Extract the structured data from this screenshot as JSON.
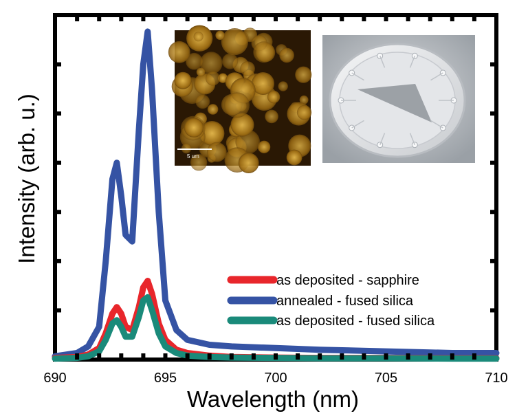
{
  "chart_data": {
    "type": "line",
    "xlabel": "Wavelength (nm)",
    "ylabel": "Intensity (arb. u.)",
    "xlim": [
      690,
      710
    ],
    "ylim": [
      0,
      1.05
    ],
    "x_ticks": [
      690,
      695,
      700,
      705,
      710
    ],
    "x_tick_labels": [
      "690",
      "695",
      "700",
      "705",
      "710"
    ],
    "y_tick_labels_shown": false,
    "grid": false,
    "legend_position": "center-right",
    "series": [
      {
        "name": "as deposited - sapphire",
        "color": "#e8262b",
        "x": [
          690,
          691,
          691.5,
          692,
          692.3,
          692.6,
          692.8,
          693.0,
          693.2,
          693.5,
          693.8,
          694.0,
          694.2,
          694.4,
          694.7,
          695.0,
          695.5,
          696,
          697,
          698,
          700,
          702,
          705,
          708,
          710
        ],
        "y": [
          0.005,
          0.008,
          0.015,
          0.035,
          0.08,
          0.14,
          0.16,
          0.14,
          0.1,
          0.09,
          0.16,
          0.22,
          0.24,
          0.2,
          0.11,
          0.06,
          0.03,
          0.02,
          0.012,
          0.008,
          0.006,
          0.005,
          0.005,
          0.004,
          0.004
        ]
      },
      {
        "name": "annealed - fused silica",
        "color": "#3553a4",
        "x": [
          690,
          691,
          691.5,
          692,
          692.3,
          692.6,
          692.8,
          693.0,
          693.2,
          693.5,
          693.8,
          694.0,
          694.2,
          694.4,
          694.7,
          695.0,
          695.5,
          696,
          697,
          698,
          700,
          702,
          705,
          708,
          710
        ],
        "y": [
          0.01,
          0.02,
          0.04,
          0.1,
          0.3,
          0.55,
          0.6,
          0.5,
          0.38,
          0.36,
          0.7,
          0.9,
          1.0,
          0.82,
          0.45,
          0.18,
          0.09,
          0.06,
          0.045,
          0.04,
          0.035,
          0.03,
          0.025,
          0.02,
          0.02
        ]
      },
      {
        "name": "as deposited - fused silica",
        "color": "#1a8a7a",
        "x": [
          690,
          691,
          691.5,
          692,
          692.3,
          692.6,
          692.8,
          693.0,
          693.2,
          693.5,
          693.8,
          694.0,
          694.2,
          694.4,
          694.7,
          695.0,
          695.5,
          696,
          697,
          698,
          700,
          702,
          705,
          708,
          710
        ],
        "y": [
          0.003,
          0.005,
          0.01,
          0.025,
          0.06,
          0.11,
          0.12,
          0.1,
          0.07,
          0.07,
          0.13,
          0.18,
          0.19,
          0.15,
          0.08,
          0.04,
          0.02,
          0.012,
          0.008,
          0.006,
          0.005,
          0.004,
          0.004,
          0.003,
          0.003
        ]
      }
    ]
  },
  "insets": [
    {
      "kind": "afm-micrograph",
      "scale_bar": "5 um"
    },
    {
      "kind": "wafer-photo"
    }
  ]
}
